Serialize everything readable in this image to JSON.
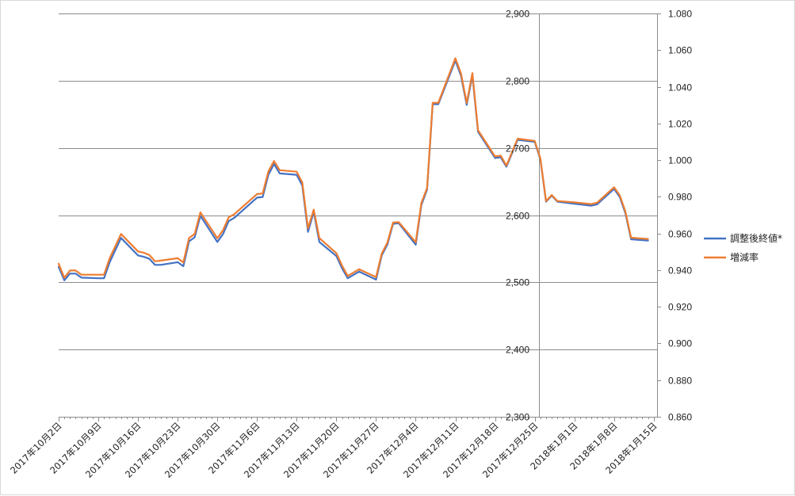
{
  "chart_data": {
    "type": "line",
    "title": "",
    "xlabel": "",
    "ylabel_left": "",
    "ylabel_right": "",
    "grid": true,
    "legend_position": "right",
    "y_left": {
      "min": 2300,
      "max": 2900,
      "ticks": [
        "2,300",
        "2,400",
        "2,500",
        "2,600",
        "2,700",
        "2,800",
        "2,900"
      ],
      "tick_values": [
        2300,
        2400,
        2500,
        2600,
        2700,
        2800,
        2900
      ]
    },
    "y_right": {
      "min": 0.86,
      "max": 1.08,
      "ticks": [
        "0.860",
        "0.880",
        "0.900",
        "0.920",
        "0.940",
        "0.960",
        "0.980",
        "1.000",
        "1.020",
        "1.040",
        "1.060",
        "1.080"
      ],
      "tick_values": [
        0.86,
        0.88,
        0.9,
        0.92,
        0.94,
        0.96,
        0.98,
        1.0,
        1.02,
        1.04,
        1.06,
        1.08
      ]
    },
    "x_ticks": [
      {
        "label": "2017年10月2日",
        "day": 0
      },
      {
        "label": "2017年10月9日",
        "day": 7
      },
      {
        "label": "2017年10月16日",
        "day": 14
      },
      {
        "label": "2017年10月23日",
        "day": 21
      },
      {
        "label": "2017年10月30日",
        "day": 28
      },
      {
        "label": "2017年11月6日",
        "day": 35
      },
      {
        "label": "2017年11月13日",
        "day": 42
      },
      {
        "label": "2017年11月20日",
        "day": 49
      },
      {
        "label": "2017年11月27日",
        "day": 56
      },
      {
        "label": "2017年12月4日",
        "day": 63
      },
      {
        "label": "2017年12月11日",
        "day": 70
      },
      {
        "label": "2017年12月18日",
        "day": 77
      },
      {
        "label": "2017年12月25日",
        "day": 84
      },
      {
        "label": "2018年1月1日",
        "day": 91
      },
      {
        "label": "2018年1月8日",
        "day": 98
      },
      {
        "label": "2018年1月15日",
        "day": 105
      }
    ],
    "series": [
      {
        "name": "調整後終値*",
        "axis": "left",
        "color": "#4472c4",
        "points": [
          [
            0,
            2523
          ],
          [
            1,
            2503
          ],
          [
            2,
            2513
          ],
          [
            3,
            2513
          ],
          [
            4,
            2507
          ],
          [
            7,
            2506
          ],
          [
            8,
            2506
          ],
          [
            9,
            2530
          ],
          [
            11,
            2566
          ],
          [
            14,
            2540
          ],
          [
            15,
            2538
          ],
          [
            16,
            2535
          ],
          [
            17,
            2526
          ],
          [
            18,
            2526
          ],
          [
            21,
            2530
          ],
          [
            22,
            2524
          ],
          [
            23,
            2561
          ],
          [
            24,
            2567
          ],
          [
            25,
            2599
          ],
          [
            28,
            2560
          ],
          [
            29,
            2572
          ],
          [
            30,
            2591
          ],
          [
            31,
            2596
          ],
          [
            35,
            2626
          ],
          [
            36,
            2627
          ],
          [
            37,
            2660
          ],
          [
            38,
            2676
          ],
          [
            39,
            2662
          ],
          [
            42,
            2660
          ],
          [
            43,
            2644
          ],
          [
            44,
            2575
          ],
          [
            45,
            2605
          ],
          [
            46,
            2560
          ],
          [
            49,
            2539
          ],
          [
            50,
            2521
          ],
          [
            51,
            2506
          ],
          [
            53,
            2516
          ],
          [
            56,
            2504
          ],
          [
            57,
            2540
          ],
          [
            58,
            2556
          ],
          [
            59,
            2587
          ],
          [
            60,
            2588
          ],
          [
            63,
            2556
          ],
          [
            64,
            2615
          ],
          [
            65,
            2638
          ],
          [
            66,
            2765
          ],
          [
            67,
            2765
          ],
          [
            70,
            2830
          ],
          [
            71,
            2807
          ],
          [
            72,
            2764
          ],
          [
            73,
            2808
          ],
          [
            74,
            2724
          ],
          [
            77,
            2685
          ],
          [
            78,
            2686
          ],
          [
            79,
            2672
          ],
          [
            81,
            2712
          ],
          [
            84,
            2709
          ],
          [
            85,
            2683
          ],
          [
            86,
            2620
          ],
          [
            87,
            2629
          ],
          [
            88,
            2620
          ],
          [
            91,
            2617
          ],
          [
            94,
            2614
          ],
          [
            95,
            2616
          ],
          [
            98,
            2639
          ],
          [
            99,
            2627
          ],
          [
            100,
            2603
          ],
          [
            101,
            2564
          ],
          [
            104,
            2562
          ]
        ]
      },
      {
        "name": "増減率",
        "axis": "right",
        "color": "#ed7d31",
        "points": [
          [
            0,
            0.9435
          ],
          [
            1,
            0.9358
          ],
          [
            2,
            0.9398
          ],
          [
            3,
            0.9398
          ],
          [
            4,
            0.9375
          ],
          [
            7,
            0.9375
          ],
          [
            8,
            0.9375
          ],
          [
            9,
            0.9465
          ],
          [
            11,
            0.9597
          ],
          [
            14,
            0.9502
          ],
          [
            15,
            0.9495
          ],
          [
            16,
            0.9482
          ],
          [
            17,
            0.9448
          ],
          [
            18,
            0.9452
          ],
          [
            21,
            0.9465
          ],
          [
            22,
            0.9442
          ],
          [
            23,
            0.9575
          ],
          [
            24,
            0.9597
          ],
          [
            25,
            0.9715
          ],
          [
            28,
            0.9574
          ],
          [
            29,
            0.9618
          ],
          [
            30,
            0.9688
          ],
          [
            31,
            0.9705
          ],
          [
            35,
            0.9815
          ],
          [
            36,
            0.9818
          ],
          [
            37,
            0.9938
          ],
          [
            38,
            0.9995
          ],
          [
            39,
            0.9945
          ],
          [
            42,
            0.9937
          ],
          [
            43,
            0.9878
          ],
          [
            44,
            0.9628
          ],
          [
            45,
            0.973
          ],
          [
            46,
            0.9575
          ],
          [
            49,
            0.9492
          ],
          [
            50,
            0.9425
          ],
          [
            51,
            0.9368
          ],
          [
            53,
            0.9405
          ],
          [
            56,
            0.9362
          ],
          [
            57,
            0.949
          ],
          [
            58,
            0.955
          ],
          [
            59,
            0.966
          ],
          [
            60,
            0.9662
          ],
          [
            63,
            0.9552
          ],
          [
            64,
            0.9766
          ],
          [
            65,
            0.9848
          ],
          [
            66,
            1.0313
          ],
          [
            67,
            1.0313
          ],
          [
            70,
            1.0556
          ],
          [
            71,
            1.0472
          ],
          [
            72,
            1.0312
          ],
          [
            73,
            1.0475
          ],
          [
            74,
            1.0163
          ],
          [
            77,
            1.002
          ],
          [
            78,
            1.0025
          ],
          [
            79,
            0.997
          ],
          [
            81,
            1.0117
          ],
          [
            84,
            1.0105
          ],
          [
            85,
            1.0009
          ],
          [
            86,
            0.9777
          ],
          [
            87,
            0.981
          ],
          [
            88,
            0.9777
          ],
          [
            91,
            0.977
          ],
          [
            94,
            0.976
          ],
          [
            95,
            0.9768
          ],
          [
            98,
            0.9852
          ],
          [
            99,
            0.9808
          ],
          [
            100,
            0.972
          ],
          [
            101,
            0.9577
          ],
          [
            104,
            0.957
          ]
        ]
      }
    ]
  }
}
